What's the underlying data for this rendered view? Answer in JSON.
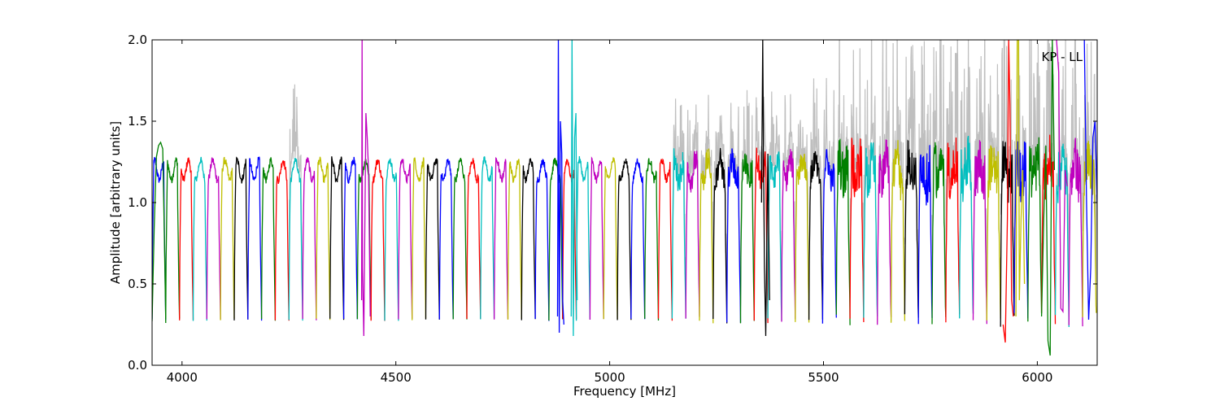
{
  "chart_data": {
    "type": "line",
    "title": "",
    "annotation": "KP - LL",
    "xlabel": "Frequency [MHz]",
    "ylabel": "Amplitude [arbitrary units]",
    "xlim": [
      3930,
      6140
    ],
    "ylim": [
      0.0,
      2.0
    ],
    "xticks": [
      4000,
      4500,
      5000,
      5500,
      6000
    ],
    "xtick_labels": [
      "4000",
      "4500",
      "5000",
      "5500",
      "6000"
    ],
    "yticks": [
      0.0,
      0.5,
      1.0,
      1.5,
      2.0
    ],
    "ytick_labels": [
      "0.0",
      "0.5",
      "1.0",
      "1.5",
      "2.0"
    ],
    "grid": false,
    "legend": "none",
    "background_trace_color": "#bfbfbf",
    "color_cycle": [
      "#0000ff",
      "#008000",
      "#ff0000",
      "#00bfbf",
      "#bf00bf",
      "#bfbf00",
      "#000000"
    ],
    "channel_width_mhz": 32,
    "channel_start_mhz": 3930,
    "channel_count": 69,
    "typical_plateau": 1.2,
    "typical_edge_minimum": 0.28,
    "series": [
      {
        "x": [
          3930,
          3935,
          3940,
          3945,
          3950,
          3955,
          3958,
          3962
        ],
        "y": [
          0.27,
          0.85,
          1.28,
          1.35,
          1.37,
          1.33,
          0.9,
          0.26
        ]
      },
      {
        "x": [
          4420,
          4421,
          4422,
          4425,
          4430,
          4433,
          4436,
          4440
        ],
        "y": [
          0.4,
          2.0,
          0.6,
          0.18,
          1.55,
          1.4,
          1.2,
          0.3
        ]
      },
      {
        "x": [
          4878,
          4880,
          4882,
          4885,
          4888,
          4890,
          4893
        ],
        "y": [
          0.3,
          2.0,
          0.2,
          1.5,
          1.3,
          0.4,
          0.25
        ]
      },
      {
        "x": [
          4910,
          4912,
          4915,
          4918,
          4921,
          4924
        ],
        "y": [
          0.3,
          2.0,
          0.18,
          1.4,
          1.55,
          0.4
        ]
      },
      {
        "x": [
          5355,
          5358,
          5360,
          5362,
          5365,
          5370,
          5374
        ],
        "y": [
          1.0,
          2.0,
          1.2,
          0.6,
          0.18,
          1.3,
          0.4
        ]
      },
      {
        "x": [
          5920,
          5925,
          5930,
          5933,
          5936,
          5940,
          5944
        ],
        "y": [
          0.25,
          0.14,
          0.9,
          2.0,
          1.6,
          0.4,
          0.3
        ]
      },
      {
        "x": [
          5950,
          5953,
          5956,
          5958,
          5962,
          5966,
          5970
        ],
        "y": [
          0.3,
          2.0,
          2.0,
          0.4,
          0.9,
          1.2,
          0.5
        ]
      },
      {
        "x": [
          6010,
          6015,
          6020,
          6025,
          6030,
          6035,
          6040
        ],
        "y": [
          0.3,
          0.9,
          1.35,
          0.15,
          0.06,
          2.0,
          1.2
        ]
      },
      {
        "x": [
          6045,
          6050,
          6055,
          6060,
          6065,
          6070
        ],
        "y": [
          2.0,
          1.8,
          0.35,
          0.33,
          1.2,
          1.1
        ]
      },
      {
        "x": [
          6110,
          6115,
          6120,
          6125,
          6130,
          6135,
          6140
        ],
        "y": [
          2.0,
          1.0,
          0.28,
          0.6,
          1.4,
          1.5,
          1.0
        ]
      }
    ]
  }
}
